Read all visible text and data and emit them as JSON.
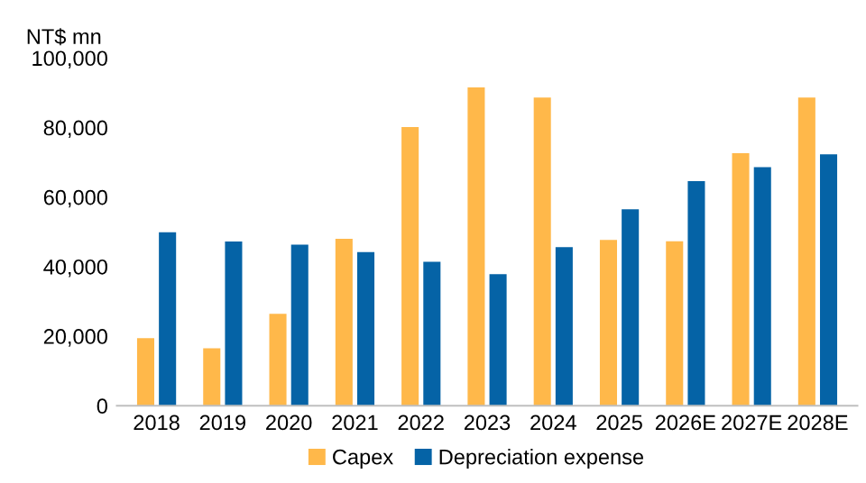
{
  "chart_data": {
    "type": "bar",
    "ylabel": "NT$ mn",
    "categories": [
      "2018",
      "2019",
      "2020",
      "2021",
      "2022",
      "2023",
      "2024",
      "2025",
      "2026E",
      "2027E",
      "2028E"
    ],
    "series": [
      {
        "name": "Capex",
        "color": "#ffb84a",
        "values": [
          19400,
          16500,
          26400,
          48000,
          80100,
          91500,
          88600,
          47700,
          47300,
          72600,
          88600
        ]
      },
      {
        "name": "Depreciation expense",
        "color": "#0563a6",
        "values": [
          49900,
          47200,
          46300,
          44200,
          41400,
          37800,
          45600,
          56500,
          64600,
          68600,
          72300
        ]
      }
    ],
    "ylim": [
      0,
      100000
    ],
    "yticks": [
      {
        "value": 0,
        "label": "0"
      },
      {
        "value": 20000,
        "label": "20,000"
      },
      {
        "value": 40000,
        "label": "40,000"
      },
      {
        "value": 60000,
        "label": "60,000"
      },
      {
        "value": 80000,
        "label": "80,000"
      },
      {
        "value": 100000,
        "label": "100,000"
      }
    ],
    "grid": false,
    "legend": "bottom"
  }
}
